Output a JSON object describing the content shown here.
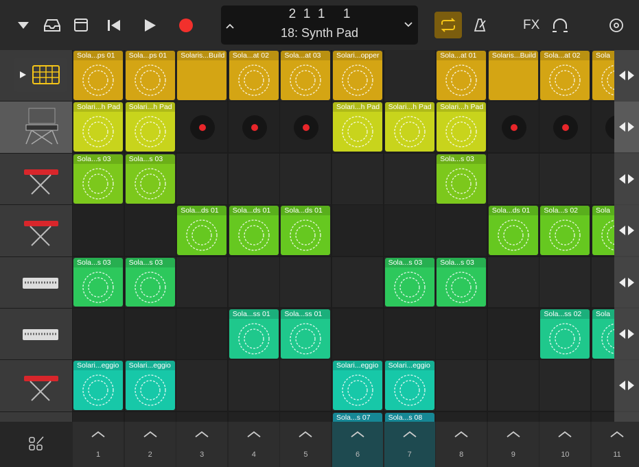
{
  "toolbar": {
    "position": "2  1  1     1",
    "patch": "18: Synth Pad",
    "fx": "FX"
  },
  "tracks": [
    {
      "color": "#d4a514",
      "cells": [
        "Sola...ps 01",
        "Sola...ps 01",
        "Solaris...Build",
        "Sola...at 02",
        "Sola...at 03",
        "Solari...opper",
        null,
        "Sola...at 01",
        "Solaris...Build",
        "Sola...at 02",
        "Sola"
      ]
    },
    {
      "color": "#c8d41c",
      "cells": [
        "Solari...h Pad",
        "Solari...h Pad",
        {
          "state": "record"
        },
        {
          "state": "record"
        },
        {
          "state": "record"
        },
        "Solari...h Pad",
        "Solari...h Pad",
        "Solari...h Pad",
        {
          "state": "record"
        },
        {
          "state": "record"
        },
        {
          "state": "record"
        }
      ]
    },
    {
      "color": "#7cc81c",
      "cells": [
        "Sola...s 03",
        "Sola...s 03",
        null,
        null,
        null,
        null,
        null,
        "Sola...s 03",
        null,
        null,
        null
      ]
    },
    {
      "color": "#66c820",
      "cells": [
        null,
        null,
        "Sola...ds 01",
        "Sola...ds 01",
        "Sola...ds 01",
        null,
        null,
        null,
        "Sola...ds 01",
        "Sola...s 02",
        "Sola"
      ]
    },
    {
      "color": "#2dc85c",
      "cells": [
        "Sola...s 03",
        "Sola...s 03",
        null,
        null,
        null,
        null,
        "Sola...s 03",
        "Sola...s 03",
        null,
        null,
        null
      ]
    },
    {
      "color": "#1fc88c",
      "cells": [
        null,
        null,
        null,
        "Sola...ss 01",
        "Sola...ss 01",
        null,
        null,
        null,
        null,
        "Sola...ss 02",
        "Sola"
      ]
    },
    {
      "color": "#17c8a8",
      "cells": [
        "Solari...eggio",
        "Solari...eggio",
        null,
        null,
        null,
        "Solari...eggio",
        "Solari...eggio",
        null,
        null,
        null,
        null
      ]
    },
    {
      "color": "#1a9aaa",
      "cells": [
        null,
        null,
        null,
        null,
        null,
        "Sola...s 07",
        "Sola...s 08",
        null,
        null,
        null,
        null
      ]
    }
  ],
  "columns": [
    "1",
    "2",
    "3",
    "4",
    "5",
    "6",
    "7",
    "8",
    "9",
    "10",
    "11"
  ]
}
